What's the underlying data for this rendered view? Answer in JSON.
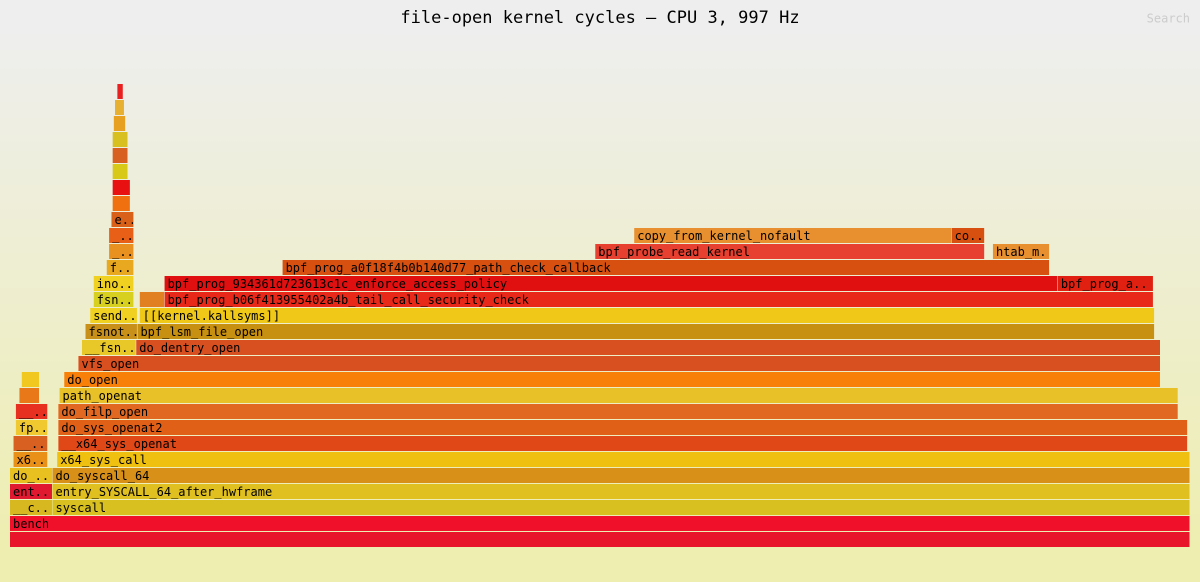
{
  "controls": {
    "search": "Search"
  },
  "chart_data": {
    "type": "flame",
    "title": "file-open kernel cycles — CPU 3, 997 Hz",
    "frames": [
      {
        "name": null,
        "level": 0,
        "x": 0,
        "value": 100,
        "color": "#e8142a"
      },
      {
        "name": "bench",
        "level": 1,
        "x": 0,
        "value": 100,
        "color": "#f0102a"
      },
      {
        "name": "__c..",
        "level": 2,
        "x": 0,
        "value": 3.6,
        "color": "#d8b820"
      },
      {
        "name": "syscall",
        "level": 2,
        "x": 3.6,
        "value": 96.4,
        "color": "#d8c020"
      },
      {
        "name": "ent..",
        "level": 3,
        "x": 0,
        "value": 3.6,
        "color": "#e01830"
      },
      {
        "name": "entry_SYSCALL_64_after_hwframe",
        "level": 3,
        "x": 3.6,
        "value": 96.4,
        "color": "#e0c020"
      },
      {
        "name": "do_..",
        "level": 4,
        "x": 0,
        "value": 3.6,
        "color": "#e8c020"
      },
      {
        "name": "do_syscall_64",
        "level": 4,
        "x": 3.6,
        "value": 96.4,
        "color": "#d89018"
      },
      {
        "name": "x6..",
        "level": 5,
        "x": 0.3,
        "value": 2.9,
        "color": "#e89018"
      },
      {
        "name": "x64_sys_call",
        "level": 5,
        "x": 4.0,
        "value": 96.0,
        "color": "#f0c010"
      },
      {
        "name": "__..",
        "level": 6,
        "x": 0.3,
        "value": 2.9,
        "color": "#d86020"
      },
      {
        "name": "__x64_sys_openat",
        "level": 6,
        "x": 4.1,
        "value": 95.7,
        "color": "#e04818"
      },
      {
        "name": "fp..",
        "level": 7,
        "x": 0.5,
        "value": 2.7,
        "color": "#f0c830"
      },
      {
        "name": "do_sys_openat2",
        "level": 7,
        "x": 4.1,
        "value": 95.7,
        "color": "#e06018"
      },
      {
        "name": "__..",
        "level": 8,
        "x": 0.5,
        "value": 2.7,
        "color": "#e83020"
      },
      {
        "name": "do_filp_open",
        "level": 8,
        "x": 4.1,
        "value": 94.9,
        "color": "#e06820"
      },
      {
        "name": null,
        "level": 9,
        "x": 0.8,
        "value": 1.7,
        "color": "#e87818"
      },
      {
        "name": "path_openat",
        "level": 9,
        "x": 4.2,
        "value": 94.8,
        "color": "#e8c028"
      },
      {
        "name": null,
        "level": 10,
        "x": 1.0,
        "value": 1.5,
        "color": "#f0c820"
      },
      {
        "name": "do_open",
        "level": 10,
        "x": 4.6,
        "value": 92.9,
        "color": "#f88008"
      },
      {
        "name": "vfs_open",
        "level": 11,
        "x": 5.8,
        "value": 91.7,
        "color": "#d85020"
      },
      {
        "name": "__fsn..",
        "level": 12,
        "x": 6.1,
        "value": 4.6,
        "color": "#e8c828"
      },
      {
        "name": "do_dentry_open",
        "level": 12,
        "x": 10.7,
        "value": 86.8,
        "color": "#d85020"
      },
      {
        "name": "fsnot..",
        "level": 13,
        "x": 6.4,
        "value": 4.4,
        "color": "#c89018"
      },
      {
        "name": "bpf_lsm_file_open",
        "level": 13,
        "x": 10.8,
        "value": 86.2,
        "color": "#c89010"
      },
      {
        "name": "send..",
        "level": 14,
        "x": 6.8,
        "value": 4.0,
        "color": "#f0d020"
      },
      {
        "name": "[[kernel.kallsyms]]",
        "level": 14,
        "x": 11.0,
        "value": 86.0,
        "color": "#f0c818"
      },
      {
        "name": "fsn..",
        "level": 15,
        "x": 7.1,
        "value": 3.4,
        "color": "#d8d020"
      },
      {
        "name": null,
        "level": 15,
        "x": 11.0,
        "value": 2.1,
        "color": "#e08020"
      },
      {
        "name": "bpf_prog_b06f413955402a4b_tail_call_security_check",
        "level": 15,
        "x": 13.1,
        "value": 83.8,
        "color": "#e82818"
      },
      {
        "name": "ino..",
        "level": 16,
        "x": 7.1,
        "value": 3.4,
        "color": "#f0d020"
      },
      {
        "name": "bpf_prog_934361d723613c1c_enforce_access_policy",
        "level": 16,
        "x": 13.1,
        "value": 75.7,
        "color": "#e01010"
      },
      {
        "name": "bpf_prog_a..",
        "level": 16,
        "x": 88.8,
        "value": 8.1,
        "color": "#e02010"
      },
      {
        "name": "f..",
        "level": 17,
        "x": 8.2,
        "value": 2.3,
        "color": "#e8a820"
      },
      {
        "name": "bpf_prog_a0f18f4b0b140d77_path_check_callback",
        "level": 17,
        "x": 23.1,
        "value": 65.0,
        "color": "#d85010"
      },
      {
        "name": "_..",
        "level": 18,
        "x": 8.4,
        "value": 2.1,
        "color": "#e89020"
      },
      {
        "name": "bpf_probe_read_kernel",
        "level": 18,
        "x": 49.6,
        "value": 33.0,
        "color": "#e84030"
      },
      {
        "name": "htab_m..",
        "level": 18,
        "x": 83.3,
        "value": 4.8,
        "color": "#e89030"
      },
      {
        "name": "_..",
        "level": 19,
        "x": 8.4,
        "value": 2.1,
        "color": "#e86018"
      },
      {
        "name": "copy_from_kernel_nofault",
        "level": 19,
        "x": 52.9,
        "value": 26.9,
        "color": "#e89030"
      },
      {
        "name": "co..",
        "level": 19,
        "x": 79.8,
        "value": 2.8,
        "color": "#d85010"
      },
      {
        "name": "e..",
        "level": 20,
        "x": 8.6,
        "value": 1.9,
        "color": "#d86018"
      },
      {
        "name": null,
        "level": 21,
        "x": 8.7,
        "value": 1.5,
        "color": "#f07010"
      },
      {
        "name": null,
        "level": 22,
        "x": 8.7,
        "value": 1.5,
        "color": "#e81010"
      },
      {
        "name": null,
        "level": 23,
        "x": 8.7,
        "value": 1.3,
        "color": "#d8c818"
      },
      {
        "name": null,
        "level": 24,
        "x": 8.7,
        "value": 1.3,
        "color": "#d86020"
      },
      {
        "name": null,
        "level": 25,
        "x": 8.7,
        "value": 1.3,
        "color": "#d8c020"
      },
      {
        "name": null,
        "level": 26,
        "x": 8.8,
        "value": 1.0,
        "color": "#e8a020"
      },
      {
        "name": null,
        "level": 27,
        "x": 8.9,
        "value": 0.8,
        "color": "#e8b030"
      },
      {
        "name": null,
        "level": 28,
        "x": 9.1,
        "value": 0.5,
        "color": "#e82020"
      }
    ]
  }
}
